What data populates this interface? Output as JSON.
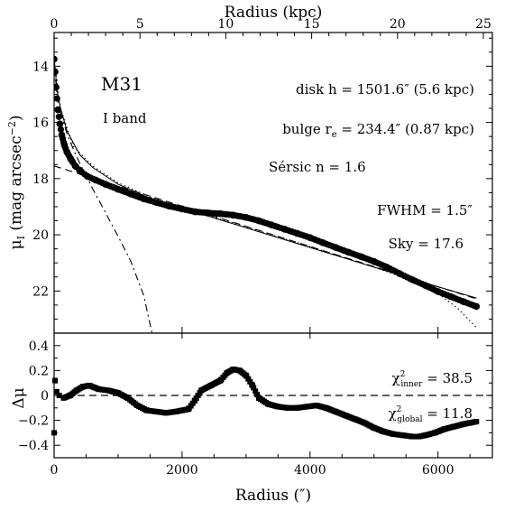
{
  "chart_data": [
    {
      "type": "scatter",
      "panel": "upper",
      "x_top": {
        "label": "Radius (kpc)",
        "ticks": [
          0,
          5,
          10,
          15,
          20,
          25
        ],
        "lim": [
          0,
          25
        ]
      },
      "xlim": [
        0,
        6850
      ],
      "ylim": [
        23.5,
        12.8
      ],
      "y_inverted": true,
      "yticks": [
        14,
        16,
        18,
        20,
        22
      ],
      "ylabel_prefix": "μ",
      "ylabel_sub": "I",
      "ylabel_rest": " (mag arcsec",
      "ylabel_sup": "−2",
      "ylabel_close": ")",
      "annotations": {
        "galaxy": "M31",
        "band": "I band",
        "disk": "disk h = 1501.6″ (5.6 kpc)",
        "bulge_prefix": "bulge r",
        "bulge_sub": "e",
        "bulge_rest": " = 234.4″ (0.87 kpc)",
        "sersic": "Sérsic n = 1.6",
        "fwhm": "FWHM = 1.5″",
        "sky": "Sky = 17.6"
      },
      "series": [
        {
          "role": "observed profile (filled circles)",
          "x": [
            0,
            15,
            30,
            60,
            90,
            120,
            160,
            200,
            260,
            330,
            420,
            520,
            650,
            800,
            1000,
            1200,
            1400,
            1600,
            1800,
            2000,
            2200,
            2400,
            2600,
            2800,
            3000,
            3200,
            3400,
            3600,
            3800,
            4000,
            4200,
            4400,
            4600,
            4800,
            5000,
            5200,
            5400,
            5600,
            5800,
            6000,
            6200,
            6400,
            6600
          ],
          "y": [
            13.75,
            14.2,
            14.75,
            15.55,
            16.05,
            16.45,
            16.8,
            17.05,
            17.3,
            17.55,
            17.75,
            17.92,
            18.05,
            18.2,
            18.38,
            18.55,
            18.72,
            18.85,
            18.98,
            19.08,
            19.18,
            19.22,
            19.25,
            19.3,
            19.38,
            19.5,
            19.65,
            19.8,
            19.95,
            20.1,
            20.28,
            20.45,
            20.62,
            20.78,
            20.95,
            21.15,
            21.38,
            21.6,
            21.8,
            22.02,
            22.2,
            22.38,
            22.55
          ]
        },
        {
          "role": "disk component (dashed)",
          "x": [
            0,
            6600
          ],
          "y": [
            17.55,
            22.28
          ]
        },
        {
          "role": "bulge component (dash-dot)",
          "x": [
            0,
            50,
            100,
            200,
            300,
            400,
            500,
            600,
            800,
            1000,
            1200,
            1400,
            1530
          ],
          "y": [
            13.9,
            15.1,
            15.65,
            16.4,
            16.95,
            17.45,
            17.9,
            18.35,
            19.2,
            20.05,
            20.95,
            22.15,
            23.5
          ]
        },
        {
          "role": "model profile (solid)",
          "x": [
            0,
            50,
            100,
            200,
            400,
            600,
            1000,
            1500,
            2000,
            3000,
            4000,
            5000,
            6000,
            6600
          ],
          "y": [
            13.75,
            14.9,
            15.5,
            16.3,
            17.15,
            17.6,
            18.2,
            18.7,
            19.05,
            19.75,
            20.45,
            21.15,
            21.85,
            22.25
          ]
        },
        {
          "role": "alternative model (dotted)",
          "x": [
            0,
            100,
            300,
            600,
            1000,
            1500,
            2000,
            3000,
            4000,
            5000,
            5500,
            6000,
            6300,
            6600
          ],
          "y": [
            13.75,
            15.5,
            16.85,
            17.55,
            18.15,
            18.65,
            19.02,
            19.72,
            20.42,
            21.15,
            21.55,
            22.1,
            22.6,
            23.3
          ]
        }
      ]
    },
    {
      "type": "scatter",
      "panel": "lower",
      "xlabel": "Radius (″)",
      "xticks": [
        0,
        2000,
        4000,
        6000
      ],
      "xlim": [
        0,
        6850
      ],
      "ylim": [
        -0.5,
        0.5
      ],
      "yticks": [
        -0.4,
        -0.2,
        0,
        0.2,
        0.4
      ],
      "ytick_labels": [
        "−0.4",
        "−0.2",
        "0",
        "0.2",
        "0.4"
      ],
      "ylabel": "Δμ",
      "annotations": {
        "chi_inner_sym": "χ",
        "chi_inner_sup": "2",
        "chi_inner_sub": "inner",
        "chi_inner_val": " = 38.5",
        "chi_global_sym": "χ",
        "chi_global_sup": "2",
        "chi_global_sub": "global",
        "chi_global_val": " = 11.8"
      },
      "series": [
        {
          "role": "residuals (filled squares)",
          "x": [
            0,
            15,
            40,
            80,
            150,
            250,
            350,
            450,
            550,
            700,
            850,
            1000,
            1150,
            1300,
            1450,
            1600,
            1750,
            1900,
            2000,
            2100,
            2200,
            2300,
            2450,
            2600,
            2700,
            2800,
            2900,
            3000,
            3100,
            3200,
            3350,
            3500,
            3650,
            3800,
            3950,
            4100,
            4250,
            4400,
            4550,
            4700,
            4850,
            5000,
            5150,
            5300,
            5450,
            5600,
            5700,
            5800,
            5950,
            6100,
            6250,
            6400,
            6500,
            6600
          ],
          "y": [
            -0.3,
            0.12,
            0.03,
            0.0,
            -0.02,
            0.0,
            0.04,
            0.07,
            0.08,
            0.05,
            0.04,
            0.02,
            -0.02,
            -0.08,
            -0.12,
            -0.13,
            -0.14,
            -0.13,
            -0.12,
            -0.11,
            -0.04,
            0.04,
            0.08,
            0.12,
            0.18,
            0.21,
            0.2,
            0.16,
            0.08,
            -0.02,
            -0.07,
            -0.09,
            -0.1,
            -0.1,
            -0.09,
            -0.08,
            -0.1,
            -0.13,
            -0.16,
            -0.19,
            -0.22,
            -0.26,
            -0.29,
            -0.31,
            -0.32,
            -0.33,
            -0.33,
            -0.32,
            -0.3,
            -0.27,
            -0.25,
            -0.23,
            -0.22,
            -0.21
          ]
        },
        {
          "role": "zero line (dashed)",
          "x": [
            0,
            6850
          ],
          "y": [
            0,
            0
          ]
        }
      ]
    }
  ]
}
